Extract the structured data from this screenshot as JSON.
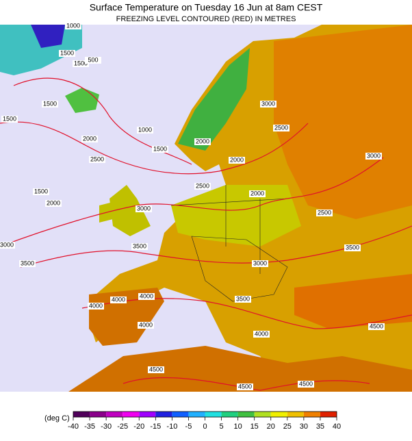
{
  "header": {
    "title": "Surface Temperature on Tuesday 16 Jun at 8am CEST",
    "subtitle": "FREEZING LEVEL CONTOURED (RED) IN METRES"
  },
  "contour_labels": [
    1000,
    1500,
    1500,
    500,
    1500,
    1500,
    1000,
    2000,
    1500,
    2000,
    2500,
    2000,
    2500,
    3000,
    3000,
    1500,
    2000,
    2500,
    2000,
    3000,
    2500,
    3500,
    3500,
    3000,
    3500,
    3000,
    4000,
    4000,
    4000,
    3500,
    4000,
    4000,
    4500,
    4500,
    4500,
    4500
  ],
  "legend": {
    "unit": "(deg C)",
    "ticks": [
      -40,
      -35,
      -30,
      -25,
      -20,
      -15,
      -10,
      -5,
      0,
      5,
      10,
      15,
      20,
      25,
      30,
      35,
      40
    ],
    "colors": [
      "#50005a",
      "#8a008a",
      "#c000c0",
      "#f000f0",
      "#a000ff",
      "#2020e0",
      "#1060ff",
      "#20b0ff",
      "#20e0e0",
      "#20d080",
      "#40c040",
      "#b0e020",
      "#f0f000",
      "#f0c000",
      "#f08000",
      "#e02000"
    ]
  }
}
